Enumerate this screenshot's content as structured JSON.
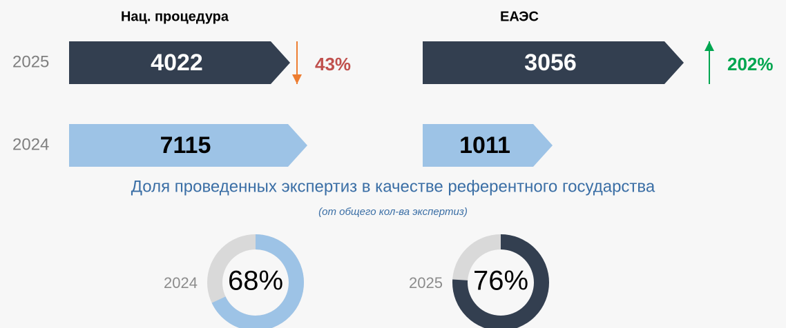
{
  "panels": [
    {
      "title": "Нац. процедура",
      "rows": [
        {
          "year": "2025",
          "value": 4022,
          "color": "#333f50",
          "text_color": "#ffffff"
        },
        {
          "year": "2024",
          "value": 7115,
          "color": "#9dc3e6",
          "text_color": "#000000"
        }
      ],
      "change": {
        "direction": "down",
        "value": 43,
        "label": "43%",
        "arrow_color": "#ed7d31",
        "color": "#c0504d"
      }
    },
    {
      "title": "ЕАЭС",
      "rows": [
        {
          "value": 3056,
          "color": "#333f50",
          "text_color": "#ffffff"
        },
        {
          "value": 1011,
          "color": "#9dc3e6",
          "text_color": "#000000"
        }
      ],
      "change": {
        "direction": "up",
        "value": 202,
        "label": "202%",
        "arrow_color": "#00a650",
        "color": "#00a650"
      }
    }
  ],
  "share": {
    "title": "Доля проведенных экспертиз в качестве референтного государства",
    "subtitle": "(от общего кол-ва экспертиз)",
    "items": [
      {
        "year": "2024",
        "value": 68,
        "label": "68%",
        "color": "#9dc3e6"
      },
      {
        "year": "2025",
        "value": 76,
        "label": "76%",
        "color": "#333f50"
      }
    ]
  }
}
